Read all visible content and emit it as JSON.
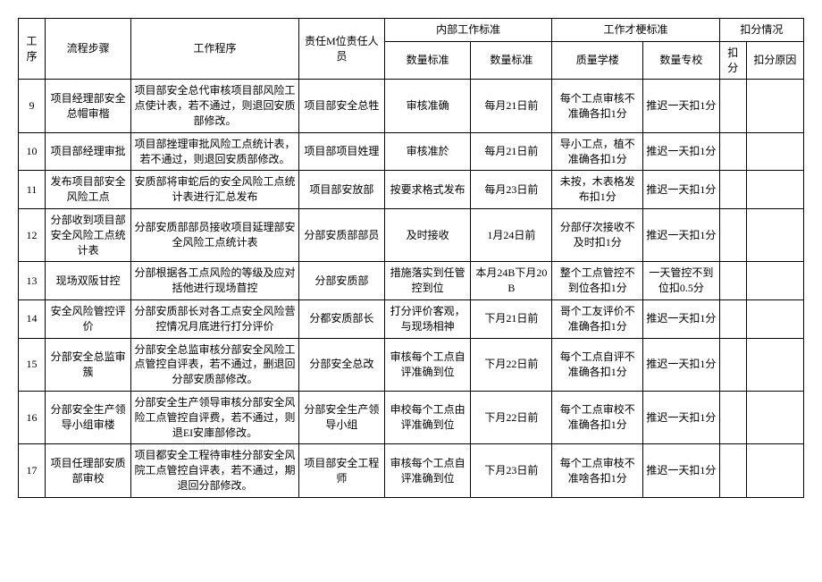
{
  "header": {
    "seq": "工序",
    "step": "流程步骤",
    "proc": "工作程序",
    "resp": "责任M位责任人员",
    "internal_group": "内部工作标准",
    "internal_qual": "数量标准",
    "internal_quan": "数量标准",
    "external_group": "工作才梗标准",
    "external_qual": "质量学楼",
    "external_quan": "数量专校",
    "deduct_group": "扣分情况",
    "deduct_score": "扣分",
    "deduct_reason": "扣分原因"
  },
  "rows": [
    {
      "seq": "9",
      "step": "项目经理部安全总帽审楷",
      "proc": "项目部安全总代审核项目部风险工点使计表，若不通过，则退回安质部修改。",
      "resp": "项目部安全总牲",
      "iq": "审核准确",
      "in": "每月21日前",
      "eq": "每个工点审核不准确各扣1分",
      "en": "推迟一天扣1分",
      "d1": "",
      "d2": ""
    },
    {
      "seq": "10",
      "step": "项目部经理审批",
      "proc": "项目部挫理审批风险工点统计表，若不通过，则退回安质部修改。",
      "resp": "项目部项目姓理",
      "iq": "审核准於",
      "in": "每月21日前",
      "eq": "导小工点，植不准确各扣1分",
      "en": "推迟一天扣1分",
      "d1": "",
      "d2": ""
    },
    {
      "seq": "11",
      "step": "发布项目部安全风险工点",
      "proc": "安质部将审蛇后的安全风险工点统计表进行汇总发布",
      "resp": "项目部安放部",
      "iq": "按要求格式发布",
      "in": "每月23日前",
      "eq": "未按，木表格发布扣1分",
      "en": "推迟一天扣1分",
      "d1": "",
      "d2": ""
    },
    {
      "seq": "12",
      "step": "分部收到项目部安全风险工点统计表",
      "proc": "分部安质部部员接收项目延理部安全风险工点统计表",
      "resp": "分部安质部部员",
      "iq": "及时接收",
      "in": "1月24日前",
      "eq": "分部仔次接收不及时扣1分",
      "en": "推迟一天扣1分",
      "d1": "",
      "d2": ""
    },
    {
      "seq": "13",
      "step": "现场双阪甘控",
      "proc": "分部根据各工点风险的等级及应对括他进行现场苜控",
      "resp": "分部安质部",
      "iq": "措施落实到任管控到位",
      "in": "本月24B下月20B",
      "eq": "整个工点管控不到位各扣1分",
      "en": "一天管控不到位扣0.5分",
      "d1": "",
      "d2": ""
    },
    {
      "seq": "14",
      "step": "安全风险管控评价",
      "proc": "分部安质部长对各工点安全风险营控情况月底进行打分评价",
      "resp": "分都安质部长",
      "iq": "打分评价客观，与现场相神",
      "in": "下月21日前",
      "eq": "哥个工友评价不准确各扣1分",
      "en": "推迟一天扣1分",
      "d1": "",
      "d2": ""
    },
    {
      "seq": "15",
      "step": "分部安全总监审簇",
      "proc": "分部安全总监审核分部安全风险工点管控自评表，若不通过，删退回分部安质部修改。",
      "resp": "分部安全总改",
      "iq": "审核每个工点自评准确到位",
      "in": "下月22日前",
      "eq": "每个工点自评不准确各扣1分",
      "en": "推迟一天扣1分",
      "d1": "",
      "d2": ""
    },
    {
      "seq": "16",
      "step": "分部安全生产领导小组审楼",
      "proc": "分部安全生产领导审核分部安全风险工点管控自评费，若不通过，则退EI安庫部修改。",
      "resp": "分部安全生产领导小组",
      "iq": "申校每个工点由评准确到位",
      "in": "下月22日前",
      "eq": "每个工点审校不准确各扣1分",
      "en": "推迟一天扣1分",
      "d1": "",
      "d2": ""
    },
    {
      "seq": "17",
      "step": "项目任理部安质部审校",
      "proc": "项目都安全工程待审桂分部安全风院工点管控自评表，若不通过，期退回分部修改。",
      "resp": "项目部安全工程师",
      "iq": "审核每个工点自评准确到位",
      "in": "下月23日前",
      "eq": "每个工点审枝不准啥各扣1分",
      "en": "推迟一天扣1分",
      "d1": "",
      "d2": ""
    }
  ]
}
